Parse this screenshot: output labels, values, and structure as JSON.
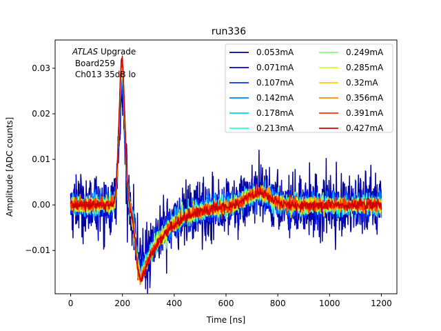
{
  "chart_data": {
    "type": "line",
    "title": "run336",
    "xlabel": "Time [ns]",
    "ylabel": "Amplitude [ADC counts]",
    "xlim": [
      -60,
      1260
    ],
    "ylim": [
      -0.0195,
      0.0362
    ],
    "xticks": [
      0,
      200,
      400,
      600,
      800,
      1000,
      1200
    ],
    "xtick_labels": [
      "0",
      "200",
      "400",
      "600",
      "800",
      "1000",
      "1200"
    ],
    "yticks": [
      -0.01,
      0.0,
      0.01,
      0.02,
      0.03
    ],
    "ytick_labels": [
      "−0.01",
      "0.00",
      "0.01",
      "0.02",
      "0.03"
    ],
    "grid": false,
    "legend": {
      "location": "upper right",
      "columns": 2
    },
    "annotation": {
      "line1_italic": "ATLAS",
      "line1_rest": " Upgrade",
      "line2": " Board259",
      "line3": " Ch013 35dB lo"
    },
    "x_range": [
      0,
      1200
    ],
    "pulse_shape": {
      "peak_time": 198,
      "undershoot_time": 272,
      "bump_time": 725,
      "description": "same waveform for all series, scaled by peak; noise decreases with current"
    },
    "series": [
      {
        "name": "0.053mA",
        "color": "#00008f",
        "peak": 0.0235,
        "trough": -0.013,
        "bump": 0.002,
        "noise": 0.0034
      },
      {
        "name": "0.071mA",
        "color": "#0000c8",
        "peak": 0.0245,
        "trough": -0.014,
        "bump": 0.0021,
        "noise": 0.0026
      },
      {
        "name": "0.107mA",
        "color": "#0030ff",
        "peak": 0.0265,
        "trough": -0.015,
        "bump": 0.0023,
        "noise": 0.0017
      },
      {
        "name": "0.142mA",
        "color": "#0080ff",
        "peak": 0.0275,
        "trough": -0.0153,
        "bump": 0.0024,
        "noise": 0.0013
      },
      {
        "name": "0.178mA",
        "color": "#00d0ff",
        "peak": 0.0285,
        "trough": -0.0156,
        "bump": 0.0025,
        "noise": 0.0011
      },
      {
        "name": "0.213mA",
        "color": "#22ffd4",
        "peak": 0.029,
        "trough": -0.0158,
        "bump": 0.0026,
        "noise": 0.001
      },
      {
        "name": "0.249mA",
        "color": "#80ff80",
        "peak": 0.0295,
        "trough": -0.0159,
        "bump": 0.0026,
        "noise": 0.0009
      },
      {
        "name": "0.285mA",
        "color": "#ccff33",
        "peak": 0.03,
        "trough": -0.016,
        "bump": 0.0027,
        "noise": 0.0008
      },
      {
        "name": "0.32mA",
        "color": "#ffd000",
        "peak": 0.0305,
        "trough": -0.0161,
        "bump": 0.0027,
        "noise": 0.0008
      },
      {
        "name": "0.356mA",
        "color": "#ff8c00",
        "peak": 0.031,
        "trough": -0.0162,
        "bump": 0.0028,
        "noise": 0.0007
      },
      {
        "name": "0.391mA",
        "color": "#ff3300",
        "peak": 0.0315,
        "trough": -0.0163,
        "bump": 0.0028,
        "noise": 0.0007
      },
      {
        "name": "0.427mA",
        "color": "#cc0000",
        "peak": 0.032,
        "trough": -0.0165,
        "bump": 0.0029,
        "noise": 0.0006
      }
    ]
  }
}
